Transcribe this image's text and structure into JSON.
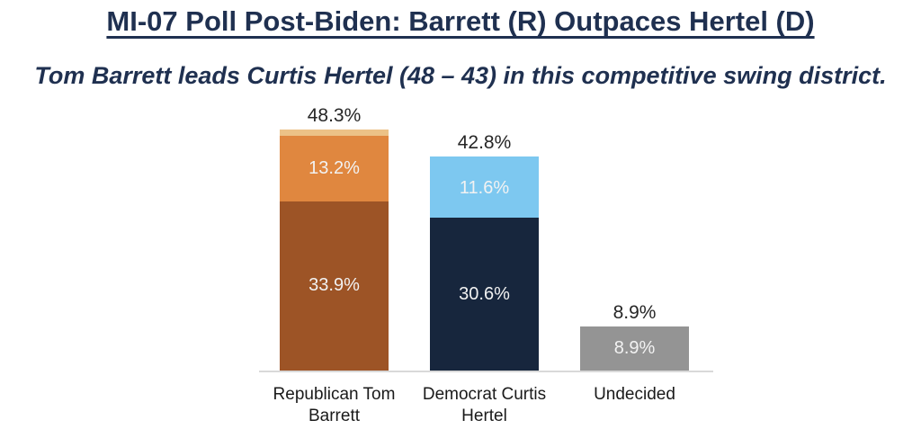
{
  "chart_data": {
    "type": "bar",
    "stacked": true,
    "title": "MI-07 Poll Post-Biden: Barrett (R) Outpaces Hertel (D)",
    "subtitle": "Tom Barrett leads Curtis Hertel (48 – 43) in this competitive swing district.",
    "unit": "%",
    "ylim": [
      0,
      54
    ],
    "grid": false,
    "legend": "none",
    "categories": [
      "Republican Tom Barrett",
      "Democrat Curtis Hertel",
      "Undecided"
    ],
    "colors": {
      "heading": "#1f3050",
      "axis_line": "#d9d9d9",
      "outside_label": "#262626",
      "inside_label": "#f2f2f2",
      "category_label": "#1a1a1a"
    },
    "bars": [
      {
        "category": "Republican Tom Barrett",
        "total": 48.3,
        "total_label": "48.3%",
        "segments": [
          {
            "value": 33.9,
            "label": "33.9%",
            "color": "#9d5426"
          },
          {
            "value": 13.2,
            "label": "13.2%",
            "color": "#e0873f"
          },
          {
            "value": 1.2,
            "label": "",
            "color": "#ecc287"
          }
        ]
      },
      {
        "category": "Democrat Curtis Hertel",
        "total": 42.8,
        "total_label": "42.8%",
        "segments": [
          {
            "value": 30.6,
            "label": "30.6%",
            "color": "#17263d"
          },
          {
            "value": 11.6,
            "label": "11.6%",
            "color": "#7dc8f0"
          },
          {
            "value": 0.6,
            "label": "",
            "color": "#7dc8f0"
          }
        ]
      },
      {
        "category": "Undecided",
        "total": 8.9,
        "total_label": "8.9%",
        "segments": [
          {
            "value": 8.9,
            "label": "8.9%",
            "color": "#949494"
          }
        ]
      }
    ]
  }
}
